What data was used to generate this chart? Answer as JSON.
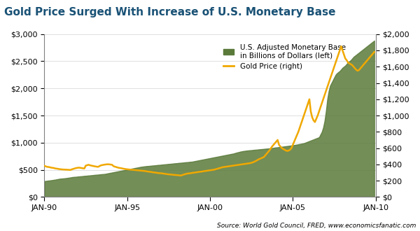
{
  "title": "Gold Price Surged With Increase of U.S. Monetary Base",
  "title_color": "#1a5276",
  "source_text": "Source: World Gold Council, FRED, www.economicsfanatic.com",
  "legend_label_monetary": "U.S. Adjusted Monetary Base\nin Billions of Dollars (left)",
  "legend_label_gold": "Gold Price (right)",
  "monetary_color": "#5a7a3a",
  "gold_color": "#f0a800",
  "left_ylim": [
    0,
    3000
  ],
  "right_ylim": [
    0,
    2000
  ],
  "left_yticks": [
    0,
    500,
    1000,
    1500,
    2000,
    2500,
    3000
  ],
  "right_yticks": [
    0,
    200,
    400,
    600,
    800,
    1000,
    1200,
    1400,
    1600,
    1800,
    2000
  ],
  "xtick_labels": [
    "JAN-90",
    "JAN-95",
    "JAN-00",
    "JAN-05",
    "JAN-10"
  ],
  "xtick_positions": [
    0,
    60,
    120,
    180,
    240
  ],
  "monetary_base": [
    291,
    295,
    298,
    302,
    305,
    308,
    312,
    316,
    320,
    325,
    330,
    335,
    338,
    340,
    342,
    345,
    348,
    352,
    356,
    360,
    365,
    368,
    370,
    372,
    375,
    378,
    380,
    382,
    385,
    388,
    390,
    392,
    395,
    397,
    400,
    402,
    405,
    408,
    410,
    412,
    415,
    418,
    420,
    422,
    425,
    430,
    435,
    440,
    445,
    450,
    455,
    460,
    465,
    470,
    475,
    480,
    485,
    490,
    495,
    500,
    505,
    510,
    515,
    520,
    525,
    530,
    535,
    540,
    545,
    550,
    555,
    558,
    562,
    565,
    568,
    570,
    572,
    575,
    578,
    580,
    582,
    585,
    588,
    590,
    592,
    595,
    598,
    600,
    602,
    605,
    608,
    610,
    612,
    615,
    618,
    620,
    622,
    625,
    628,
    630,
    632,
    635,
    638,
    640,
    642,
    645,
    648,
    650,
    655,
    660,
    665,
    670,
    675,
    680,
    685,
    690,
    695,
    700,
    705,
    710,
    715,
    720,
    725,
    730,
    735,
    740,
    745,
    750,
    755,
    760,
    765,
    770,
    775,
    780,
    785,
    790,
    795,
    800,
    808,
    815,
    822,
    828,
    835,
    840,
    845,
    848,
    852,
    855,
    858,
    860,
    862,
    865,
    868,
    870,
    872,
    875,
    878,
    880,
    882,
    885,
    888,
    890,
    892,
    895,
    898,
    900,
    905,
    910,
    912,
    915,
    918,
    922,
    925,
    928,
    932,
    935,
    938,
    942,
    945,
    948,
    952,
    956,
    960,
    965,
    970,
    975,
    980,
    985,
    990,
    1000,
    1010,
    1020,
    1030,
    1040,
    1050,
    1060,
    1070,
    1080,
    1090,
    1100,
    1150,
    1200,
    1280,
    1400,
    1580,
    1800,
    1950,
    2050,
    2100,
    2150,
    2200,
    2250,
    2280,
    2300,
    2320,
    2350,
    2380,
    2400,
    2420,
    2450,
    2480,
    2500,
    2520,
    2550,
    2580,
    2600,
    2620,
    2640,
    2660,
    2680,
    2700,
    2720,
    2740,
    2760,
    2780,
    2800,
    2820,
    2840,
    2860,
    2880
  ],
  "gold_price": [
    383,
    376,
    370,
    368,
    365,
    360,
    358,
    355,
    350,
    348,
    345,
    342,
    340,
    338,
    337,
    336,
    335,
    334,
    333,
    332,
    340,
    345,
    350,
    355,
    358,
    360,
    358,
    355,
    352,
    350,
    385,
    390,
    395,
    390,
    385,
    382,
    378,
    375,
    372,
    370,
    380,
    388,
    392,
    395,
    398,
    400,
    402,
    400,
    398,
    396,
    380,
    372,
    368,
    362,
    358,
    355,
    352,
    348,
    345,
    342,
    340,
    338,
    336,
    335,
    333,
    332,
    330,
    328,
    327,
    325,
    323,
    322,
    320,
    318,
    315,
    312,
    310,
    308,
    305,
    302,
    300,
    298,
    295,
    293,
    292,
    290,
    288,
    285,
    283,
    280,
    278,
    276,
    275,
    273,
    271,
    270,
    268,
    267,
    265,
    263,
    270,
    275,
    280,
    285,
    288,
    290,
    292,
    295,
    298,
    300,
    303,
    305,
    308,
    310,
    312,
    315,
    318,
    320,
    323,
    325,
    328,
    330,
    333,
    335,
    340,
    345,
    350,
    355,
    360,
    365,
    368,
    370,
    373,
    375,
    378,
    380,
    383,
    385,
    388,
    390,
    393,
    395,
    398,
    400,
    403,
    405,
    408,
    410,
    413,
    415,
    420,
    425,
    432,
    440,
    450,
    460,
    468,
    475,
    482,
    490,
    510,
    530,
    550,
    570,
    595,
    620,
    640,
    660,
    680,
    700,
    640,
    620,
    600,
    590,
    580,
    570,
    565,
    570,
    580,
    600,
    640,
    680,
    720,
    760,
    800,
    850,
    900,
    950,
    1000,
    1050,
    1100,
    1150,
    1200,
    1050,
    980,
    940,
    920,
    960,
    1000,
    1050,
    1100,
    1150,
    1200,
    1250,
    1300,
    1350,
    1400,
    1450,
    1500,
    1550,
    1600,
    1650,
    1700,
    1750,
    1800,
    1850,
    1800,
    1750,
    1700,
    1680,
    1650,
    1640,
    1630,
    1620,
    1600,
    1580,
    1560,
    1550,
    1560,
    1580,
    1600,
    1620,
    1640,
    1660,
    1680,
    1700,
    1720,
    1740,
    1760,
    1780
  ]
}
